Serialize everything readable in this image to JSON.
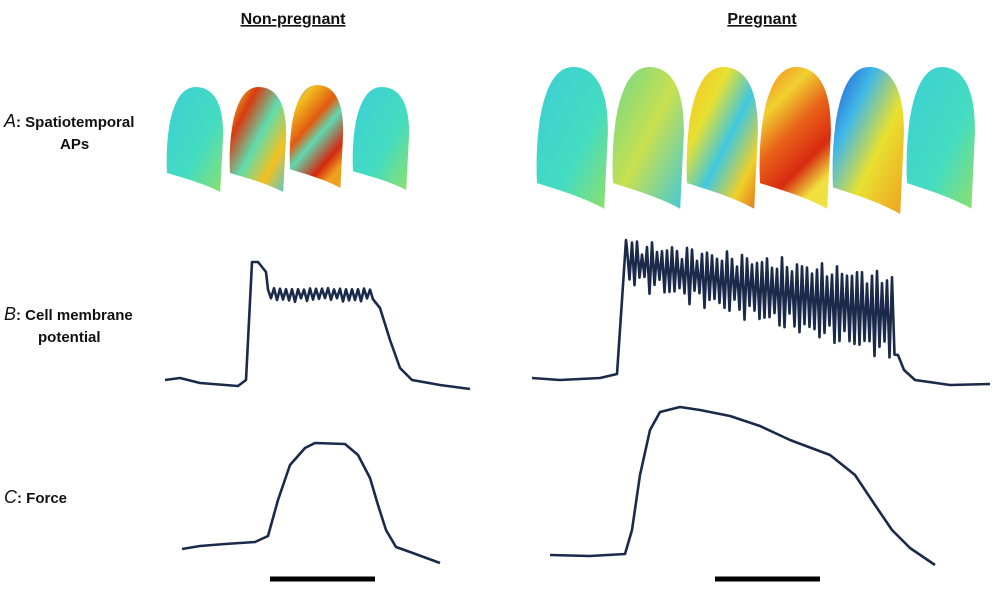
{
  "columns": [
    {
      "title": "Non-pregnant"
    },
    {
      "title": "Pregnant"
    }
  ],
  "rows": [
    {
      "letter": "A",
      "label": [
        ": Spatiotemporal",
        "APs"
      ]
    },
    {
      "letter": "B",
      "label": [
        ": Cell membrane",
        "potential"
      ]
    },
    {
      "letter": "C",
      "label": [
        ": Force"
      ]
    }
  ]
}
